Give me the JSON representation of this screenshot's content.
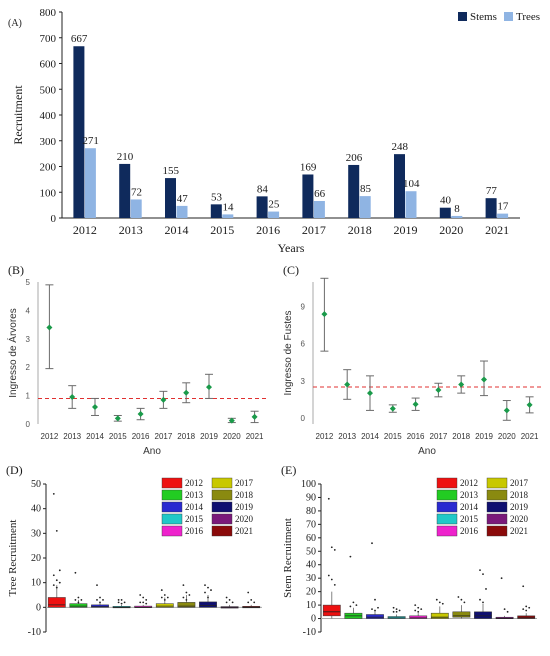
{
  "colors": {
    "stems": "#0f2a5c",
    "trees": "#8fb4e3",
    "point": "#1a9a4a",
    "errbar": "#6b6b6b",
    "refline": "#e03030",
    "text": "#1a1a1a"
  },
  "chart_data": [
    {
      "panel": "(A)",
      "type": "bar",
      "xlabel": "Years",
      "ylabel": "Recruitment",
      "ylim": [
        0,
        800
      ],
      "yticks": [
        0,
        100,
        200,
        300,
        400,
        500,
        600,
        700,
        800
      ],
      "categories": [
        "2012",
        "2013",
        "2014",
        "2015",
        "2016",
        "2017",
        "2018",
        "2019",
        "2020",
        "2021"
      ],
      "series": [
        {
          "name": "Stems",
          "color": "#0f2a5c",
          "values": [
            667,
            210,
            155,
            53,
            84,
            169,
            206,
            248,
            40,
            77
          ]
        },
        {
          "name": "Trees",
          "color": "#8fb4e3",
          "values": [
            271,
            72,
            47,
            14,
            25,
            66,
            85,
            104,
            8,
            17
          ]
        }
      ],
      "legend": "top-right"
    },
    {
      "panel": "(B)",
      "type": "scatter",
      "xlabel": "Ano",
      "ylabel": "Ingresso de Árvores",
      "ylim": [
        0,
        5
      ],
      "yticks": [
        0,
        1,
        2,
        3,
        4,
        5
      ],
      "categories": [
        "2012",
        "2013",
        "2014",
        "2015",
        "2016",
        "2017",
        "2018",
        "2019",
        "2020",
        "2021"
      ],
      "values": [
        3.4,
        0.95,
        0.6,
        0.2,
        0.35,
        0.85,
        1.1,
        1.3,
        0.12,
        0.25
      ],
      "lower": [
        1.95,
        0.55,
        0.3,
        0.1,
        0.15,
        0.55,
        0.75,
        0.9,
        0.05,
        0.05
      ],
      "upper": [
        4.9,
        1.35,
        0.9,
        0.3,
        0.55,
        1.15,
        1.45,
        1.75,
        0.2,
        0.45
      ],
      "reference_line": 0.9
    },
    {
      "panel": "(C)",
      "type": "scatter",
      "xlabel": "Ano",
      "ylabel": "Ingresso de Fustes",
      "ylim": [
        -0.5,
        11
      ],
      "yticks": [
        0,
        3,
        6,
        9
      ],
      "categories": [
        "2012",
        "2013",
        "2014",
        "2015",
        "2016",
        "2017",
        "2018",
        "2019",
        "2020",
        "2021"
      ],
      "values": [
        8.4,
        2.7,
        2.0,
        0.75,
        1.1,
        2.25,
        2.7,
        3.1,
        0.6,
        1.05
      ],
      "lower": [
        5.4,
        1.5,
        0.6,
        0.45,
        0.6,
        1.7,
        2.0,
        1.8,
        -0.2,
        0.4
      ],
      "upper": [
        11.3,
        3.9,
        3.4,
        1.05,
        1.6,
        2.8,
        3.4,
        4.6,
        1.4,
        1.7
      ],
      "reference_line": 2.5
    },
    {
      "panel": "(D)",
      "type": "box",
      "ylabel": "Tree Recruitment",
      "ylim": [
        -10,
        50
      ],
      "yticks": [
        -10,
        0,
        10,
        20,
        30,
        40,
        50
      ],
      "categories": [
        "2012",
        "2013",
        "2014",
        "2015",
        "2016",
        "2017",
        "2018",
        "2019",
        "2020",
        "2021"
      ],
      "colors": [
        "#ee1111",
        "#22cc22",
        "#2a2ad0",
        "#20c8c8",
        "#ee22cc",
        "#c8c800",
        "#8a8a10",
        "#101070",
        "#7a1a7a",
        "#8a0a0a"
      ],
      "boxes": [
        {
          "min": 0,
          "q1": 0,
          "median": 1,
          "q3": 4,
          "max": 9
        },
        {
          "min": 0,
          "q1": 0,
          "median": 0.5,
          "q3": 1.5,
          "max": 3
        },
        {
          "min": 0,
          "q1": 0,
          "median": 0.3,
          "q3": 1,
          "max": 2
        },
        {
          "min": 0,
          "q1": 0,
          "median": 0,
          "q3": 0.4,
          "max": 1
        },
        {
          "min": 0,
          "q1": 0,
          "median": 0,
          "q3": 0.5,
          "max": 1
        },
        {
          "min": 0,
          "q1": 0,
          "median": 0.5,
          "q3": 1.5,
          "max": 4
        },
        {
          "min": 0,
          "q1": 0,
          "median": 0.5,
          "q3": 2,
          "max": 5
        },
        {
          "min": 0,
          "q1": 0,
          "median": 0.7,
          "q3": 2.2,
          "max": 5
        },
        {
          "min": 0,
          "q1": 0,
          "median": 0,
          "q3": 0.3,
          "max": 1
        },
        {
          "min": 0,
          "q1": 0,
          "median": 0,
          "q3": 0.4,
          "max": 1
        }
      ],
      "outliers": [
        [
          46,
          31,
          15,
          13,
          11,
          10,
          9,
          8
        ],
        [
          14,
          4,
          3,
          3,
          2
        ],
        [
          9,
          4,
          3,
          3,
          2
        ],
        [
          3,
          3,
          2,
          2,
          1.5
        ],
        [
          5,
          4,
          3,
          2,
          2,
          1.5
        ],
        [
          7,
          5,
          4,
          4,
          3
        ],
        [
          9,
          6,
          5,
          4,
          3
        ],
        [
          9,
          8,
          7,
          6,
          4
        ],
        [
          4,
          3,
          2,
          2
        ],
        [
          6,
          3,
          2,
          2
        ]
      ],
      "legend": "top-right"
    },
    {
      "panel": "(E)",
      "type": "box",
      "ylabel": "Stem Recruitment",
      "ylim": [
        -10,
        100
      ],
      "yticks": [
        -10,
        0,
        10,
        20,
        30,
        40,
        50,
        60,
        70,
        80,
        90,
        100
      ],
      "categories": [
        "2012",
        "2013",
        "2014",
        "2015",
        "2016",
        "2017",
        "2018",
        "2019",
        "2020",
        "2021"
      ],
      "colors": [
        "#ee1111",
        "#22cc22",
        "#2a2ad0",
        "#20c8c8",
        "#ee22cc",
        "#c8c800",
        "#8a8a10",
        "#101070",
        "#7a1a7a",
        "#8a0a0a"
      ],
      "boxes": [
        {
          "min": 0,
          "q1": 2,
          "median": 5,
          "q3": 10,
          "max": 20
        },
        {
          "min": 0,
          "q1": 0,
          "median": 2,
          "q3": 4,
          "max": 8
        },
        {
          "min": 0,
          "q1": 0,
          "median": 1,
          "q3": 3,
          "max": 6
        },
        {
          "min": 0,
          "q1": 0,
          "median": 0.5,
          "q3": 1.5,
          "max": 3
        },
        {
          "min": 0,
          "q1": 0,
          "median": 0.5,
          "q3": 2,
          "max": 4
        },
        {
          "min": 0,
          "q1": 0,
          "median": 1,
          "q3": 4,
          "max": 9
        },
        {
          "min": 0,
          "q1": 1,
          "median": 2,
          "q3": 5,
          "max": 10
        },
        {
          "min": 0,
          "q1": 0,
          "median": 2,
          "q3": 5,
          "max": 11
        },
        {
          "min": 0,
          "q1": 0,
          "median": 0,
          "q3": 1,
          "max": 2
        },
        {
          "min": 0,
          "q1": 0,
          "median": 0.5,
          "q3": 2,
          "max": 4
        }
      ],
      "outliers": [
        [
          89,
          53,
          51,
          32,
          29,
          25
        ],
        [
          46,
          12,
          10,
          9
        ],
        [
          56,
          14,
          8,
          7,
          6
        ],
        [
          8,
          7,
          6,
          5,
          5
        ],
        [
          10,
          8,
          7,
          6,
          5
        ],
        [
          14,
          12,
          11
        ],
        [
          16,
          14,
          12
        ],
        [
          36,
          33,
          22,
          14,
          12
        ],
        [
          30,
          7,
          5
        ],
        [
          24,
          9,
          8,
          7,
          6
        ]
      ],
      "legend": "top-right"
    }
  ]
}
